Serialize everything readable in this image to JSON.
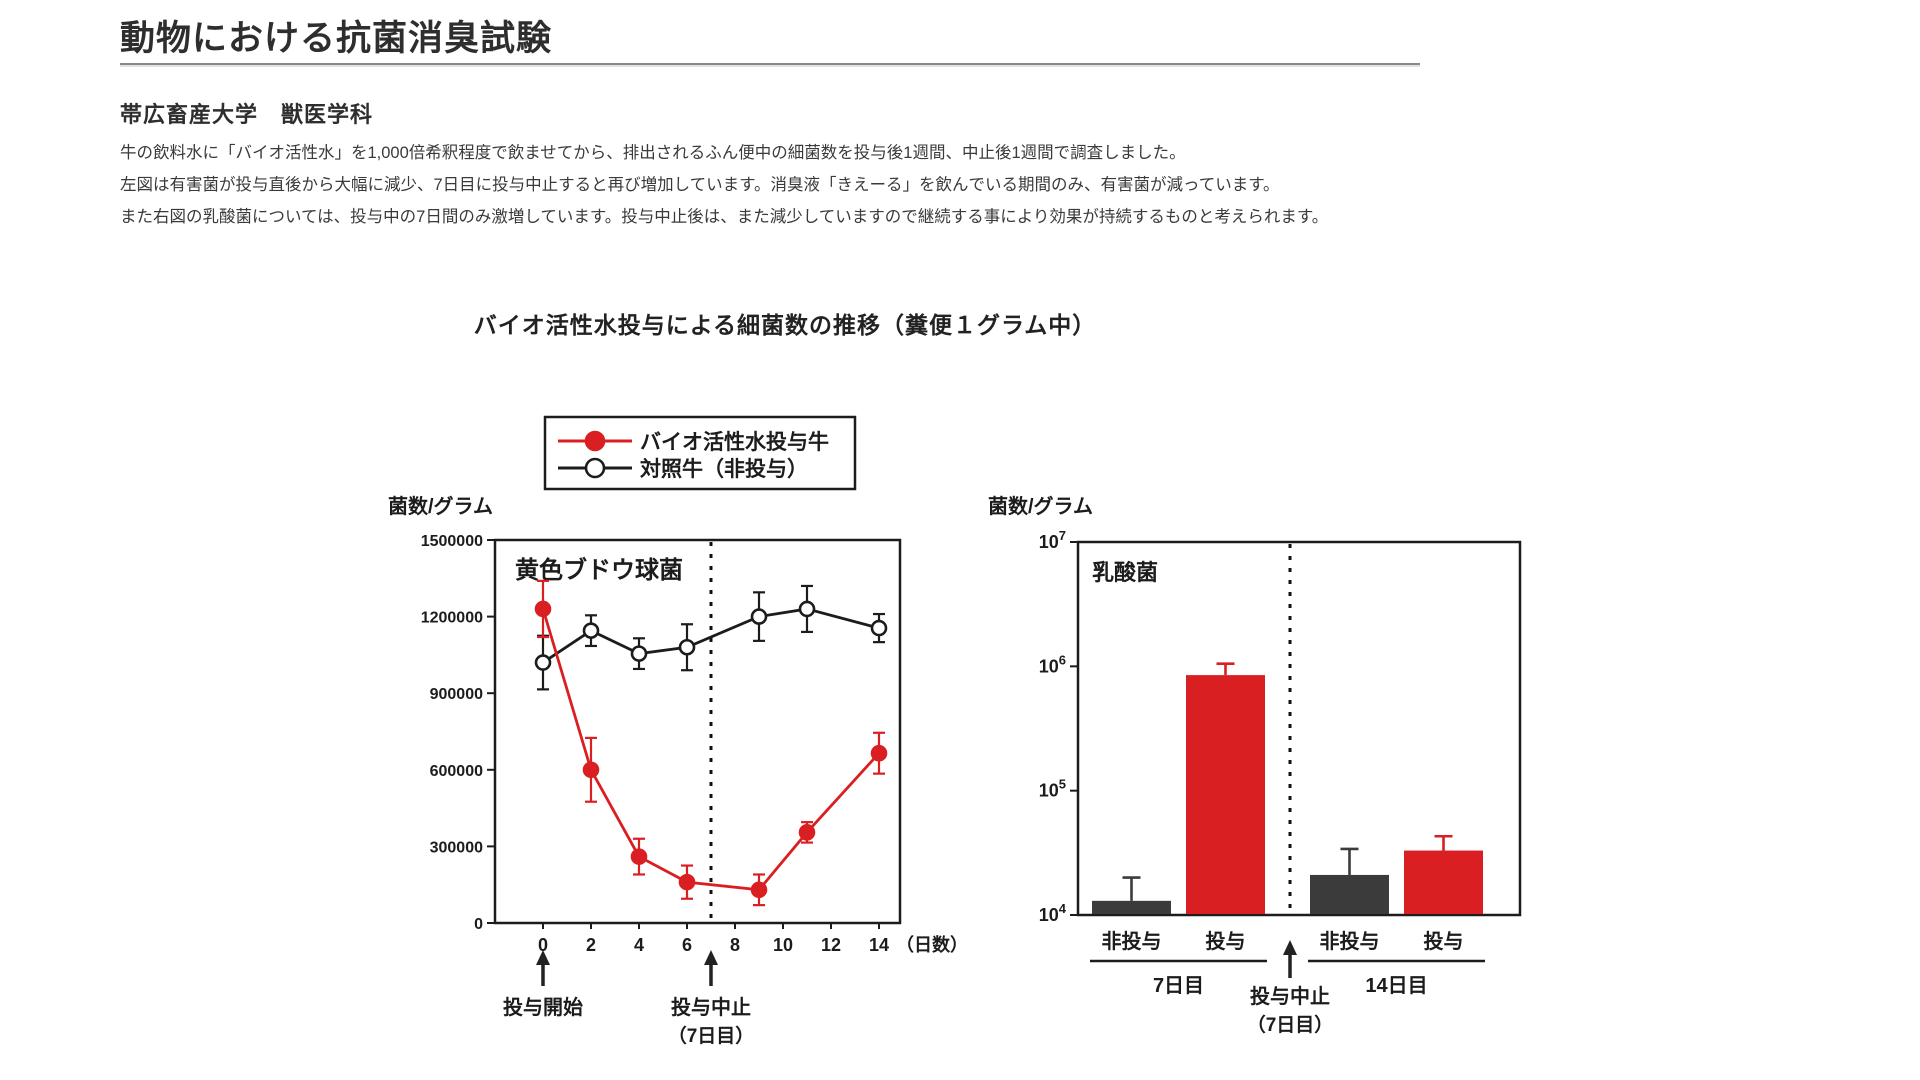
{
  "page": {
    "title": "動物における抗菌消臭試験",
    "subtitle": "帯広畜産大学　獣医学科",
    "paragraphs": [
      "牛の飲料水に「バイオ活性水」を1,000倍希釈程度で飲ませてから、排出されるふん便中の細菌数を投与後1週間、中止後1週間で調査しました。",
      "左図は有害菌が投与直後から大幅に減少、7日目に投与中止すると再び増加しています。消臭液「きえーる」を飲んでいる期間のみ、有害菌が減っています。",
      "また右図の乳酸菌については、投与中の7日間のみ激増しています。投与中止後は、また減少していますので継続する事により効果が持続するものと考えられます。"
    ],
    "figure_title": "バイオ活性水投与による細菌数の推移（糞便１グラム中）"
  },
  "colors": {
    "red": "#d91f22",
    "dark": "#1c1c1c",
    "bar_dark": "#3b3b3b"
  },
  "legend": {
    "items": [
      {
        "label": "バイオ活性水投与牛",
        "marker": "filled",
        "color": "#d91f22"
      },
      {
        "label": "対照牛（非投与）",
        "marker": "open",
        "color": "#1c1c1c"
      }
    ]
  },
  "chart_data": [
    {
      "type": "line",
      "title": "黄色ブドウ球菌",
      "ylabel": "菌数/グラム",
      "xlabel": "（日数）",
      "x_ticks": [
        0,
        2,
        4,
        6,
        8,
        10,
        12,
        14
      ],
      "y_ticks": [
        0,
        300000,
        600000,
        900000,
        1200000,
        1500000
      ],
      "ylim": [
        0,
        1500000
      ],
      "grid": false,
      "legend_position": "top",
      "dashed_line_x": 7,
      "series": [
        {
          "name": "バイオ活性水投与牛",
          "color": "#d91f22",
          "marker": "filled",
          "x": [
            0,
            2,
            4,
            6,
            9,
            11,
            14
          ],
          "y": [
            1230000,
            600000,
            260000,
            160000,
            130000,
            355000,
            665000
          ],
          "err": [
            110000,
            125000,
            70000,
            65000,
            60000,
            40000,
            80000
          ]
        },
        {
          "name": "対照牛（非投与）",
          "color": "#1c1c1c",
          "marker": "open",
          "x": [
            0,
            2,
            4,
            6,
            9,
            11,
            14
          ],
          "y": [
            1020000,
            1145000,
            1055000,
            1080000,
            1200000,
            1230000,
            1155000
          ],
          "err": [
            105000,
            60000,
            60000,
            90000,
            95000,
            90000,
            55000
          ]
        }
      ],
      "annotations": [
        {
          "x": 0,
          "label": "投与開始",
          "label2": ""
        },
        {
          "x": 7,
          "label": "投与中止",
          "label2": "（7日目）"
        }
      ]
    },
    {
      "type": "bar",
      "title": "乳酸菌",
      "ylabel": "菌数/グラム",
      "scale": "log",
      "ylim_exp": [
        4,
        7
      ],
      "y_ticks_exp": [
        7,
        6,
        5,
        4
      ],
      "dashed_line_between_groups": true,
      "groups": [
        {
          "label": "7日目",
          "bars": [
            {
              "label": "非投与",
              "value": 13000,
              "err_top": 20000,
              "color": "#3b3b3b"
            },
            {
              "label": "投与",
              "value": 850000,
              "err_top": 1050000,
              "color": "#d91f22"
            }
          ]
        },
        {
          "label": "14日目",
          "bars": [
            {
              "label": "非投与",
              "value": 21000,
              "err_top": 34000,
              "color": "#3b3b3b"
            },
            {
              "label": "投与",
              "value": 33000,
              "err_top": 43000,
              "color": "#d91f22"
            }
          ]
        }
      ],
      "annotation": {
        "label": "投与中止",
        "label2": "（7日目）"
      }
    }
  ]
}
